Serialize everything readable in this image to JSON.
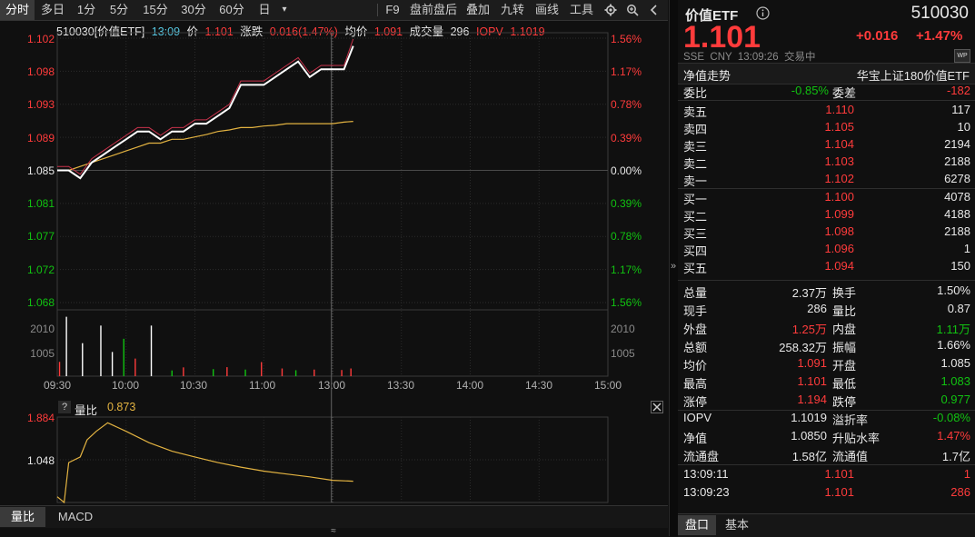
{
  "toolbar": {
    "items": [
      "分时",
      "多日",
      "1分",
      "5分",
      "15分",
      "30分",
      "60分",
      "日",
      "▾",
      "F9",
      "盘前盘后",
      "叠加",
      "九转",
      "画线",
      "工具"
    ]
  },
  "infoline": {
    "code_name": "510030[价值ETF]",
    "time": "13:09",
    "price_label": "价",
    "price": "1.101",
    "change_label": "涨跌",
    "change": "0.016(1.47%)",
    "avg_label": "均价",
    "avg": "1.091",
    "volume_label": "成交量",
    "volume": "296",
    "iopv_label": "IOPV",
    "iopv": "1.1019"
  },
  "price_axis_left": [
    "1.102",
    "1.098",
    "1.093",
    "1.089",
    "1.085",
    "1.081",
    "1.077",
    "1.072",
    "1.068"
  ],
  "pct_axis_right": [
    "1.56%",
    "1.17%",
    "0.78%",
    "0.39%",
    "0.00%",
    "0.39%",
    "0.78%",
    "1.17%",
    "1.56%"
  ],
  "vol_axis_left": [
    "2010",
    "1005"
  ],
  "vol_axis_right": [
    "2010",
    "1005"
  ],
  "time_axis": [
    "09:30",
    "10:00",
    "10:30",
    "11:00",
    "13:00",
    "13:30",
    "14:00",
    "14:30",
    "15:00"
  ],
  "sub_panel": {
    "help": "?",
    "indicator": "量比",
    "value": "0.873",
    "axis": [
      "1.884",
      "1.048"
    ],
    "tabs": [
      "量比",
      "MACD"
    ],
    "expand": "≈"
  },
  "chart_data": {
    "type": "line",
    "title": "510030[价值ETF]",
    "xlabel": "",
    "ylabel": "",
    "ylim": [
      1.068,
      1.102
    ],
    "x": [
      "09:30",
      "09:35",
      "09:40",
      "09:45",
      "09:50",
      "09:55",
      "10:00",
      "10:05",
      "10:10",
      "10:15",
      "10:20",
      "10:25",
      "10:30",
      "10:35",
      "10:40",
      "10:45",
      "10:50",
      "10:55",
      "11:00",
      "11:05",
      "11:10",
      "11:15",
      "11:20",
      "11:25",
      "13:00",
      "13:05",
      "13:09"
    ],
    "series": [
      {
        "name": "价",
        "color": "#ffffff",
        "values": [
          1.085,
          1.085,
          1.084,
          1.086,
          1.087,
          1.088,
          1.089,
          1.09,
          1.09,
          1.089,
          1.09,
          1.09,
          1.091,
          1.091,
          1.092,
          1.093,
          1.096,
          1.096,
          1.096,
          1.097,
          1.098,
          1.099,
          1.097,
          1.098,
          1.098,
          1.098,
          1.101
        ]
      },
      {
        "name": "均价",
        "color": "#e3b341",
        "values": [
          1.085,
          1.085,
          1.0855,
          1.086,
          1.0865,
          1.087,
          1.0875,
          1.088,
          1.0885,
          1.0885,
          1.089,
          1.089,
          1.0893,
          1.0896,
          1.09,
          1.0902,
          1.0905,
          1.0905,
          1.0907,
          1.0908,
          1.091,
          1.091,
          1.091,
          1.091,
          1.091,
          1.0912,
          1.0913
        ]
      },
      {
        "name": "IOPV",
        "color": "#c8324b",
        "values": [
          1.0855,
          1.0855,
          1.0845,
          1.0865,
          1.0875,
          1.0885,
          1.0895,
          1.0905,
          1.0905,
          1.0895,
          1.0905,
          1.0905,
          1.0915,
          1.0915,
          1.0925,
          1.0935,
          1.0965,
          1.0965,
          1.0965,
          1.0975,
          1.0985,
          1.0995,
          1.0975,
          1.0985,
          1.0985,
          1.0985,
          1.1019
        ]
      }
    ],
    "volume": {
      "ylim": [
        0,
        3015
      ],
      "bars": [
        {
          "x": "09:31",
          "v": 650,
          "dir": "up"
        },
        {
          "x": "09:34",
          "v": 2700,
          "dir": "up"
        },
        {
          "x": "09:41",
          "v": 1500,
          "dir": "up"
        },
        {
          "x": "09:49",
          "v": 2300,
          "dir": "up"
        },
        {
          "x": "09:54",
          "v": 1100,
          "dir": "up"
        },
        {
          "x": "09:59",
          "v": 1700,
          "dir": "down"
        },
        {
          "x": "10:04",
          "v": 800,
          "dir": "up"
        },
        {
          "x": "10:11",
          "v": 2300,
          "dir": "up"
        },
        {
          "x": "10:20",
          "v": 260,
          "dir": "down"
        },
        {
          "x": "10:25",
          "v": 400,
          "dir": "up"
        },
        {
          "x": "10:38",
          "v": 320,
          "dir": "down"
        },
        {
          "x": "10:44",
          "v": 410,
          "dir": "up"
        },
        {
          "x": "10:52",
          "v": 300,
          "dir": "down"
        },
        {
          "x": "10:59",
          "v": 640,
          "dir": "up"
        },
        {
          "x": "11:08",
          "v": 350,
          "dir": "up"
        },
        {
          "x": "11:14",
          "v": 270,
          "dir": "down"
        },
        {
          "x": "11:22",
          "v": 300,
          "dir": "up"
        },
        {
          "x": "13:04",
          "v": 280,
          "dir": "up"
        },
        {
          "x": "13:08",
          "v": 350,
          "dir": "up"
        }
      ]
    },
    "volume_ratio": {
      "color": "#e3b341",
      "ylim": [
        0.5,
        2.0
      ],
      "x": [
        "09:30",
        "09:33",
        "09:35",
        "09:40",
        "09:43",
        "09:47",
        "09:52",
        "10:00",
        "10:10",
        "10:20",
        "10:30",
        "10:40",
        "10:50",
        "11:00",
        "11:10",
        "11:20",
        "13:00",
        "13:09"
      ],
      "values": [
        0.6,
        0.5,
        1.2,
        1.3,
        1.6,
        1.75,
        1.9,
        1.75,
        1.55,
        1.4,
        1.3,
        1.2,
        1.12,
        1.05,
        1.0,
        0.95,
        0.89,
        0.873
      ]
    }
  },
  "right_panel": {
    "name": "价值ETF",
    "code": "510030",
    "price": "1.101",
    "change": "+0.016",
    "change_pct": "+1.47%",
    "meta": "SSE  CNY  13:09:26  交易中",
    "trend_label": "净值走势",
    "fund_name": "华宝上证180价值ETF",
    "weibi": {
      "label": "委比",
      "value": "-0.85%",
      "label2": "委差",
      "value2": "-182"
    },
    "sells": [
      {
        "label": "卖五",
        "price": "1.110",
        "vol": "117"
      },
      {
        "label": "卖四",
        "price": "1.105",
        "vol": "10"
      },
      {
        "label": "卖三",
        "price": "1.104",
        "vol": "2194"
      },
      {
        "label": "卖二",
        "price": "1.103",
        "vol": "2188"
      },
      {
        "label": "卖一",
        "price": "1.102",
        "vol": "6278"
      }
    ],
    "buys": [
      {
        "label": "买一",
        "price": "1.100",
        "vol": "4078"
      },
      {
        "label": "买二",
        "price": "1.099",
        "vol": "4188"
      },
      {
        "label": "买三",
        "price": "1.098",
        "vol": "2188"
      },
      {
        "label": "买四",
        "price": "1.096",
        "vol": "1"
      },
      {
        "label": "买五",
        "price": "1.094",
        "vol": "150"
      }
    ],
    "stats": [
      {
        "l1": "总量",
        "v1": "2.37万",
        "c1": "white",
        "l2": "换手",
        "v2": "1.50%",
        "c2": "white"
      },
      {
        "l1": "现手",
        "v1": "286",
        "c1": "white",
        "l2": "量比",
        "v2": "0.87",
        "c2": "white"
      },
      {
        "l1": "外盘",
        "v1": "1.25万",
        "c1": "red",
        "l2": "内盘",
        "v2": "1.11万",
        "c2": "green"
      },
      {
        "l1": "总额",
        "v1": "258.32万",
        "c1": "white",
        "l2": "振幅",
        "v2": "1.66%",
        "c2": "white"
      },
      {
        "l1": "均价",
        "v1": "1.091",
        "c1": "red",
        "l2": "开盘",
        "v2": "1.085",
        "c2": "white"
      },
      {
        "l1": "最高",
        "v1": "1.101",
        "c1": "red",
        "l2": "最低",
        "v2": "1.083",
        "c2": "green"
      },
      {
        "l1": "涨停",
        "v1": "1.194",
        "c1": "red",
        "l2": "跌停",
        "v2": "0.977",
        "c2": "green"
      }
    ],
    "fund_stats": [
      {
        "l1": "IOPV",
        "v1": "1.1019",
        "c1": "white",
        "l2": "溢折率",
        "v2": "-0.08%",
        "c2": "green"
      },
      {
        "l1": "净值",
        "v1": "1.0850",
        "c1": "white",
        "l2": "升贴水率",
        "v2": "1.47%",
        "c2": "red"
      },
      {
        "l1": "流通盘",
        "v1": "1.58亿",
        "c1": "white",
        "l2": "流通值",
        "v2": "1.7亿",
        "c2": "white"
      }
    ],
    "ticks": [
      {
        "time": "13:09:11",
        "price": "1.101",
        "vol": "1"
      },
      {
        "time": "13:09:23",
        "price": "1.101",
        "vol": "286"
      }
    ],
    "tabs": [
      "盘口",
      "基本"
    ],
    "collapse": "»"
  },
  "colors": {
    "up": "#ff3b3b",
    "down": "#11c211",
    "avg": "#e3b341",
    "price": "#ffffff",
    "background": "#101010"
  }
}
